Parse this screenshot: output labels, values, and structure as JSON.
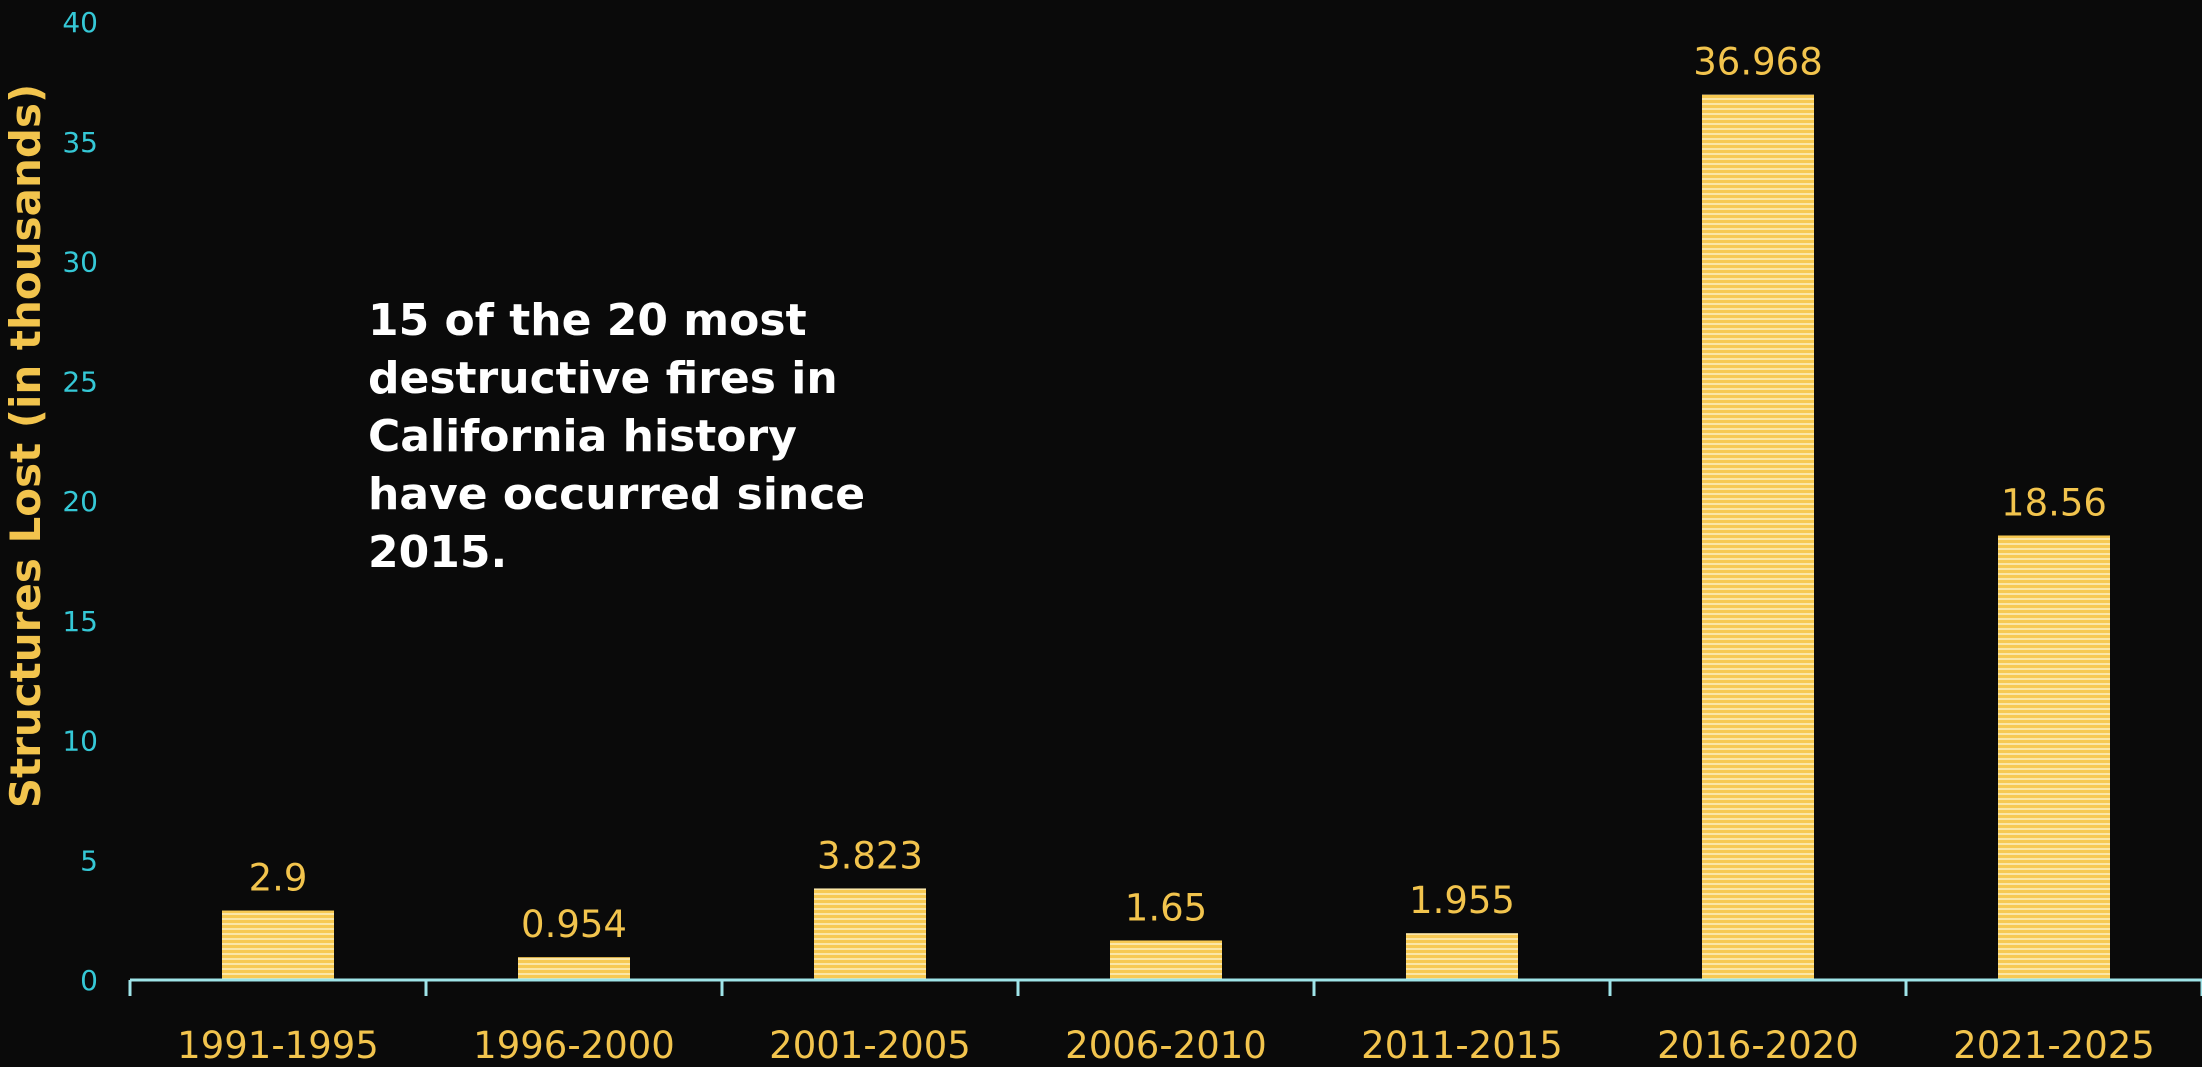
{
  "chart_data": {
    "type": "bar",
    "categories": [
      "1991-1995",
      "1996-2000",
      "2001-2005",
      "2006-2010",
      "2011-2015",
      "2016-2020",
      "2021-2025"
    ],
    "values": [
      2.9,
      0.954,
      3.823,
      1.65,
      1.955,
      36.968,
      18.56
    ],
    "data_labels": [
      "2.9",
      "0.954",
      "3.823",
      "1.65",
      "1.955",
      "36.968",
      "18.56"
    ],
    "title": "",
    "xlabel": "",
    "ylabel": "Structures Lost (in thousands)",
    "ylim": [
      0,
      40
    ],
    "yticks": [
      0,
      5,
      10,
      15,
      20,
      25,
      30,
      35,
      40
    ],
    "grid": false,
    "legend": "none",
    "annotation": "15 of the 20 most destructive fires in California history have occurred since 2015.",
    "colors": {
      "background": "#0a0a0a",
      "bar": "#f7c952",
      "bar_stripe": "#fbe6a6",
      "axis": "#9fe4e8",
      "ytick_text": "#35c8d6",
      "xtick_text": "#f2c44d",
      "label_text": "#f2c44d",
      "annotation_text": "#ffffff"
    }
  }
}
